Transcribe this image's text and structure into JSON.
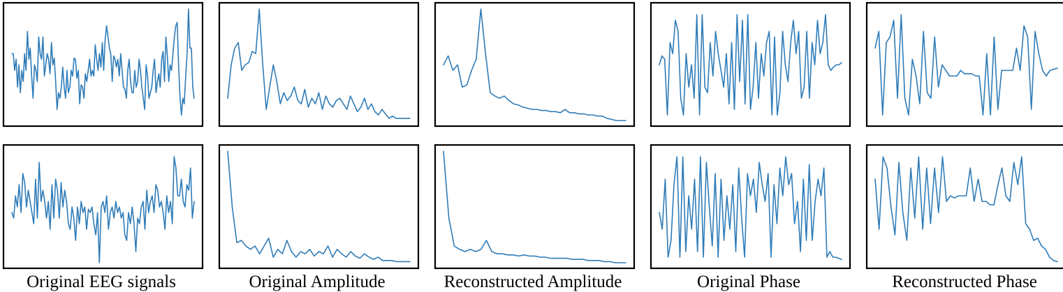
{
  "figure": {
    "line_color": "#2f7cb8",
    "captions": [
      "Original EEG signals",
      "Original Amplitude",
      "Reconstructed Amplitude",
      "Original Phase",
      "Reconstructed Phase"
    ]
  },
  "chart_data": [
    {
      "type": "line",
      "title": "Original EEG signals",
      "row": 1,
      "column": 1,
      "grid": false,
      "axes_visible": false,
      "ylim": [
        0,
        1
      ],
      "values": [
        0.6,
        0.6,
        0.45,
        0.55,
        0.3,
        0.5,
        0.25,
        0.45,
        0.35,
        0.6,
        0.45,
        0.8,
        0.55,
        0.65,
        0.4,
        0.2,
        0.5,
        0.45,
        0.35,
        0.75,
        0.6,
        0.55,
        0.75,
        0.4,
        0.5,
        0.6,
        0.55,
        0.42,
        0.7,
        0.5,
        0.56,
        0.35,
        0.1,
        0.25,
        0.2,
        0.3,
        0.48,
        0.3,
        0.2,
        0.45,
        0.25,
        0.3,
        0.45,
        0.4,
        0.56,
        0.55,
        0.38,
        0.45,
        0.15,
        0.32,
        0.3,
        0.2,
        0.42,
        0.35,
        0.45,
        0.55,
        0.4,
        0.45,
        0.4,
        0.68,
        0.55,
        0.45,
        0.6,
        0.48,
        0.7,
        0.45,
        0.72,
        0.85,
        0.75,
        0.65,
        0.6,
        0.35,
        0.58,
        0.55,
        0.48,
        0.55,
        0.4,
        0.6,
        0.45,
        0.3,
        0.28,
        0.2,
        0.45,
        0.55,
        0.35,
        0.25,
        0.25,
        0.45,
        0.3,
        0.35,
        0.55,
        0.45,
        0.3,
        0.2,
        0.1,
        0.5,
        0.4,
        0.2,
        0.25,
        0.3,
        0.45,
        0.55,
        0.25,
        0.35,
        0.42,
        0.3,
        0.55,
        0.62,
        0.35,
        0.75,
        0.58,
        0.35,
        0.5,
        0.45,
        0.6,
        0.75,
        0.85,
        0.88,
        0.5,
        0.2,
        0.05,
        0.2,
        0.15,
        0.4,
        0.6,
        1.0,
        0.65,
        0.65,
        0.3,
        0.2
      ]
    },
    {
      "type": "line",
      "title": "Original Amplitude",
      "row": 1,
      "column": 2,
      "grid": false,
      "axes_visible": false,
      "ylim": [
        0,
        1
      ],
      "values": [
        0.2,
        0.5,
        0.65,
        0.7,
        0.45,
        0.5,
        0.52,
        0.62,
        0.6,
        1.0,
        0.5,
        0.1,
        0.3,
        0.5,
        0.35,
        0.15,
        0.25,
        0.18,
        0.22,
        0.3,
        0.18,
        0.15,
        0.28,
        0.12,
        0.2,
        0.15,
        0.25,
        0.1,
        0.22,
        0.15,
        0.12,
        0.18,
        0.2,
        0.15,
        0.1,
        0.22,
        0.15,
        0.08,
        0.12,
        0.2,
        0.1,
        0.15,
        0.08,
        0.05,
        0.1,
        0.06,
        0.02,
        0.04,
        0.02,
        0.02,
        0.02,
        0.02,
        0.02
      ]
    },
    {
      "type": "line",
      "title": "Reconstructed Amplitude",
      "row": 1,
      "column": 3,
      "grid": false,
      "axes_visible": false,
      "ylim": [
        0,
        1
      ],
      "values": [
        0.5,
        0.58,
        0.45,
        0.5,
        0.3,
        0.32,
        0.45,
        0.55,
        1.0,
        0.6,
        0.25,
        0.22,
        0.2,
        0.22,
        0.18,
        0.15,
        0.14,
        0.12,
        0.11,
        0.1,
        0.1,
        0.09,
        0.09,
        0.08,
        0.08,
        0.07,
        0.1,
        0.07,
        0.07,
        0.06,
        0.06,
        0.05,
        0.05,
        0.04,
        0.04,
        0.02,
        0.01,
        0.0,
        0.0,
        0.0
      ]
    },
    {
      "type": "line",
      "title": "Original Phase",
      "row": 1,
      "column": 4,
      "grid": false,
      "axes_visible": false,
      "ylim": [
        0,
        1
      ],
      "values": [
        0.5,
        0.58,
        0.55,
        0.05,
        0.7,
        0.6,
        0.9,
        0.8,
        0.2,
        0.05,
        0.6,
        0.3,
        0.5,
        0.2,
        0.95,
        0.05,
        0.95,
        0.3,
        0.25,
        0.7,
        0.4,
        0.8,
        0.6,
        0.45,
        0.3,
        0.6,
        0.15,
        0.7,
        0.1,
        0.95,
        0.35,
        0.9,
        0.15,
        0.95,
        0.1,
        0.3,
        0.7,
        0.2,
        0.6,
        0.4,
        0.7,
        0.8,
        0.05,
        0.75,
        0.05,
        0.25,
        0.8,
        0.5,
        0.35,
        0.7,
        0.9,
        0.6,
        0.8,
        0.2,
        0.3,
        0.8,
        0.2,
        0.7,
        0.5,
        0.9,
        0.6,
        0.7,
        0.95,
        0.5,
        0.45,
        0.48,
        0.5,
        0.5,
        0.52
      ]
    },
    {
      "type": "line",
      "title": "Reconstructed Phase",
      "row": 1,
      "column": 5,
      "grid": false,
      "axes_visible": false,
      "ylim": [
        0,
        1
      ],
      "values": [
        0.65,
        0.8,
        0.05,
        0.7,
        0.75,
        0.9,
        0.2,
        0.95,
        0.2,
        0.05,
        0.55,
        0.4,
        0.15,
        0.8,
        0.25,
        0.2,
        0.75,
        0.3,
        0.5,
        0.45,
        0.4,
        0.4,
        0.4,
        0.45,
        0.42,
        0.42,
        0.42,
        0.4,
        0.4,
        0.05,
        0.6,
        0.05,
        0.75,
        0.1,
        0.45,
        0.45,
        0.45,
        0.45,
        0.65,
        0.45,
        0.85,
        0.75,
        0.1,
        0.8,
        0.6,
        0.45,
        0.4,
        0.45,
        0.46,
        0.47
      ]
    },
    {
      "type": "line",
      "title": "Original EEG signals",
      "row": 2,
      "column": 1,
      "grid": false,
      "axes_visible": false,
      "ylim": [
        0,
        1
      ],
      "values": [
        0.45,
        0.4,
        0.6,
        0.5,
        0.7,
        0.45,
        0.8,
        0.72,
        0.5,
        0.65,
        0.55,
        0.45,
        0.35,
        0.75,
        0.4,
        0.9,
        0.55,
        0.65,
        0.55,
        0.4,
        0.55,
        0.3,
        0.7,
        0.4,
        0.75,
        0.65,
        0.4,
        0.72,
        0.5,
        0.65,
        0.55,
        0.35,
        0.3,
        0.5,
        0.4,
        0.2,
        0.5,
        0.35,
        0.55,
        0.45,
        0.5,
        0.3,
        0.48,
        0.45,
        0.5,
        0.35,
        0.25,
        0.45,
        0.0,
        0.5,
        0.55,
        0.45,
        0.6,
        0.3,
        0.45,
        0.5,
        0.4,
        0.55,
        0.45,
        0.5,
        0.4,
        0.45,
        0.25,
        0.2,
        0.45,
        0.35,
        0.5,
        0.35,
        0.1,
        0.4,
        0.35,
        0.5,
        0.55,
        0.3,
        0.65,
        0.45,
        0.55,
        0.6,
        0.45,
        0.7,
        0.65,
        0.5,
        0.55,
        0.45,
        0.3,
        0.6,
        0.45,
        0.55,
        0.35,
        0.95,
        0.85,
        0.6,
        0.6,
        0.75,
        0.55,
        0.5,
        0.7,
        0.65,
        0.85,
        0.4,
        0.55
      ]
    },
    {
      "type": "line",
      "title": "Original Amplitude",
      "row": 2,
      "column": 2,
      "grid": false,
      "axes_visible": false,
      "ylim": [
        0,
        1
      ],
      "values": [
        1.0,
        0.5,
        0.18,
        0.2,
        0.15,
        0.12,
        0.15,
        0.08,
        0.15,
        0.22,
        0.05,
        0.12,
        0.08,
        0.2,
        0.1,
        0.05,
        0.1,
        0.08,
        0.12,
        0.06,
        0.1,
        0.08,
        0.15,
        0.05,
        0.12,
        0.08,
        0.05,
        0.1,
        0.06,
        0.04,
        0.08,
        0.05,
        0.03,
        0.05,
        0.02,
        0.02,
        0.02,
        0.01,
        0.01,
        0.01,
        0.01
      ]
    },
    {
      "type": "line",
      "title": "Reconstructed Amplitude",
      "row": 2,
      "column": 3,
      "grid": false,
      "axes_visible": false,
      "ylim": [
        0,
        1
      ],
      "values": [
        1.0,
        0.4,
        0.15,
        0.12,
        0.1,
        0.12,
        0.1,
        0.12,
        0.2,
        0.1,
        0.08,
        0.08,
        0.07,
        0.07,
        0.06,
        0.07,
        0.06,
        0.06,
        0.05,
        0.05,
        0.04,
        0.04,
        0.04,
        0.04,
        0.03,
        0.03,
        0.03,
        0.02,
        0.02,
        0.02,
        0.01,
        0.01,
        0.0,
        0.0,
        0.0
      ]
    },
    {
      "type": "line",
      "title": "Original Phase",
      "row": 2,
      "column": 4,
      "grid": false,
      "axes_visible": false,
      "ylim": [
        0,
        1
      ],
      "values": [
        0.45,
        0.3,
        0.75,
        0.05,
        0.2,
        0.7,
        0.95,
        0.05,
        0.95,
        0.1,
        0.6,
        0.3,
        0.75,
        0.1,
        0.95,
        0.05,
        0.9,
        0.5,
        0.15,
        0.8,
        0.05,
        0.75,
        0.2,
        0.6,
        0.3,
        0.7,
        0.1,
        0.85,
        0.4,
        0.05,
        0.8,
        0.6,
        0.75,
        0.45,
        0.9,
        0.7,
        0.55,
        0.8,
        0.05,
        0.7,
        0.35,
        0.85,
        0.6,
        0.95,
        0.7,
        0.8,
        0.35,
        0.55,
        0.1,
        0.75,
        0.2,
        0.88,
        0.2,
        0.55,
        0.75,
        0.6,
        0.85,
        0.05,
        0.1,
        0.05,
        0.05,
        0.04,
        0.03
      ]
    },
    {
      "type": "line",
      "title": "Reconstructed Phase",
      "row": 2,
      "column": 5,
      "grid": false,
      "axes_visible": false,
      "ylim": [
        0,
        1
      ],
      "values": [
        0.75,
        0.3,
        0.95,
        0.85,
        0.5,
        0.25,
        0.9,
        0.45,
        0.2,
        0.85,
        0.4,
        0.95,
        0.3,
        0.85,
        0.35,
        0.85,
        0.45,
        0.95,
        0.55,
        0.6,
        0.58,
        0.6,
        0.6,
        0.6,
        0.85,
        0.55,
        0.75,
        0.55,
        0.55,
        0.52,
        0.52,
        0.7,
        0.85,
        0.6,
        0.55,
        0.9,
        0.7,
        0.95,
        0.35,
        0.3,
        0.2,
        0.22,
        0.15,
        0.12,
        0.05,
        0.02,
        0.01
      ]
    }
  ]
}
